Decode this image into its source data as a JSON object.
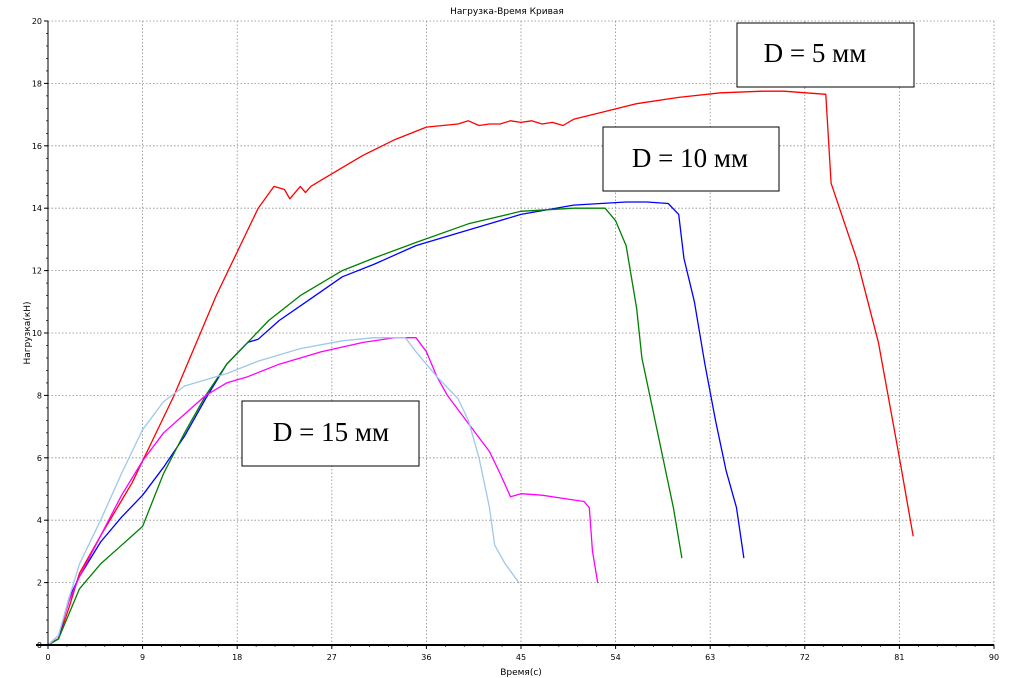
{
  "chart_data": {
    "type": "line",
    "title": "Нагрузка-Время Кривая",
    "xlabel": "Время(c)",
    "ylabel": "Нагрузка(кН)",
    "xlim": [
      0,
      90
    ],
    "ylim": [
      0,
      20
    ],
    "x_ticks": [
      "0",
      "9",
      "18",
      "27",
      "36",
      "45",
      "54",
      "63",
      "72",
      "81",
      "90"
    ],
    "y_ticks": [
      "0",
      "2",
      "4",
      "6",
      "8",
      "10",
      "12",
      "14",
      "16",
      "18",
      "20"
    ],
    "grid": true,
    "annotations": [
      {
        "text": "D = 5 мм",
        "series_color": "#ff0000"
      },
      {
        "text": "D = 10 мм",
        "series_color": "#008000"
      },
      {
        "text": "D = 15 мм",
        "series_color": "#ff00ff"
      }
    ],
    "series": [
      {
        "color": "#ff0000",
        "points": [
          [
            0,
            0
          ],
          [
            1,
            0.2
          ],
          [
            2,
            1.2
          ],
          [
            3,
            2.3
          ],
          [
            5,
            3.5
          ],
          [
            8,
            5.2
          ],
          [
            10,
            6.6
          ],
          [
            12,
            8.0
          ],
          [
            14,
            9.6
          ],
          [
            16,
            11.2
          ],
          [
            18,
            12.6
          ],
          [
            20,
            14.0
          ],
          [
            21.5,
            14.7
          ],
          [
            22.5,
            14.6
          ],
          [
            23,
            14.3
          ],
          [
            24,
            14.7
          ],
          [
            24.5,
            14.5
          ],
          [
            25,
            14.7
          ],
          [
            26,
            14.9
          ],
          [
            28,
            15.3
          ],
          [
            30,
            15.7
          ],
          [
            33,
            16.2
          ],
          [
            36,
            16.6
          ],
          [
            39,
            16.7
          ],
          [
            40,
            16.8
          ],
          [
            41,
            16.65
          ],
          [
            42,
            16.7
          ],
          [
            43,
            16.7
          ],
          [
            44,
            16.8
          ],
          [
            45,
            16.75
          ],
          [
            46,
            16.8
          ],
          [
            47,
            16.7
          ],
          [
            48,
            16.75
          ],
          [
            49,
            16.65
          ],
          [
            50,
            16.85
          ],
          [
            53,
            17.1
          ],
          [
            56,
            17.35
          ],
          [
            60,
            17.55
          ],
          [
            64,
            17.7
          ],
          [
            68,
            17.75
          ],
          [
            70,
            17.75
          ],
          [
            74,
            17.65
          ],
          [
            74.5,
            14.8
          ],
          [
            75.5,
            13.8
          ],
          [
            77,
            12.3
          ],
          [
            79,
            9.7
          ],
          [
            81,
            6.0
          ],
          [
            82.3,
            3.5
          ]
        ]
      },
      {
        "color": "#0000ff",
        "points": [
          [
            0,
            0
          ],
          [
            1,
            0.2
          ],
          [
            2,
            1.5
          ],
          [
            3,
            2.2
          ],
          [
            5,
            3.3
          ],
          [
            7,
            4.1
          ],
          [
            9,
            4.8
          ],
          [
            11,
            5.7
          ],
          [
            13,
            6.7
          ],
          [
            15,
            7.9
          ],
          [
            17,
            9.0
          ],
          [
            19,
            9.7
          ],
          [
            20,
            9.8
          ],
          [
            22,
            10.4
          ],
          [
            25,
            11.1
          ],
          [
            28,
            11.8
          ],
          [
            31,
            12.2
          ],
          [
            35,
            12.8
          ],
          [
            40,
            13.3
          ],
          [
            45,
            13.8
          ],
          [
            50,
            14.1
          ],
          [
            55,
            14.2
          ],
          [
            57,
            14.2
          ],
          [
            59,
            14.15
          ],
          [
            60,
            13.8
          ],
          [
            60.5,
            12.4
          ],
          [
            61.5,
            11.0
          ],
          [
            62.5,
            9.0
          ],
          [
            63.5,
            7.2
          ],
          [
            64.5,
            5.6
          ],
          [
            65.5,
            4.4
          ],
          [
            66.2,
            2.8
          ]
        ]
      },
      {
        "color": "#008000",
        "points": [
          [
            0,
            0
          ],
          [
            1,
            0.2
          ],
          [
            2,
            1.0
          ],
          [
            3,
            1.8
          ],
          [
            5,
            2.6
          ],
          [
            7,
            3.2
          ],
          [
            9,
            3.8
          ],
          [
            11,
            5.5
          ],
          [
            13,
            6.8
          ],
          [
            15,
            8.0
          ],
          [
            17,
            9.0
          ],
          [
            19,
            9.7
          ],
          [
            21,
            10.4
          ],
          [
            24,
            11.2
          ],
          [
            26,
            11.6
          ],
          [
            28,
            12.0
          ],
          [
            31,
            12.4
          ],
          [
            35,
            12.9
          ],
          [
            40,
            13.5
          ],
          [
            45,
            13.9
          ],
          [
            50,
            14.0
          ],
          [
            53,
            14.0
          ],
          [
            54,
            13.6
          ],
          [
            55,
            12.8
          ],
          [
            56,
            10.8
          ],
          [
            56.5,
            9.2
          ],
          [
            57.5,
            7.6
          ],
          [
            58.5,
            6.0
          ],
          [
            59.5,
            4.4
          ],
          [
            60.3,
            2.8
          ]
        ]
      },
      {
        "color": "#ff00ff",
        "points": [
          [
            0,
            0
          ],
          [
            1,
            0.3
          ],
          [
            2,
            1.4
          ],
          [
            3,
            2.2
          ],
          [
            5,
            3.5
          ],
          [
            7,
            4.8
          ],
          [
            9,
            5.9
          ],
          [
            11,
            6.8
          ],
          [
            13,
            7.4
          ],
          [
            15,
            8.0
          ],
          [
            17,
            8.4
          ],
          [
            19,
            8.6
          ],
          [
            22,
            9.0
          ],
          [
            26,
            9.4
          ],
          [
            30,
            9.7
          ],
          [
            33,
            9.85
          ],
          [
            35,
            9.85
          ],
          [
            36,
            9.4
          ],
          [
            37,
            8.6
          ],
          [
            38,
            8.0
          ],
          [
            40,
            7.1
          ],
          [
            42,
            6.2
          ],
          [
            43,
            5.5
          ],
          [
            44,
            4.75
          ],
          [
            45,
            4.85
          ],
          [
            47,
            4.8
          ],
          [
            49,
            4.7
          ],
          [
            51,
            4.6
          ],
          [
            51.5,
            4.4
          ],
          [
            51.8,
            3.0
          ],
          [
            52.3,
            2.0
          ]
        ]
      },
      {
        "color": "#9ec8ec",
        "points": [
          [
            0,
            0
          ],
          [
            1,
            0.3
          ],
          [
            2,
            1.5
          ],
          [
            3,
            2.6
          ],
          [
            5,
            4.0
          ],
          [
            7,
            5.5
          ],
          [
            9,
            6.9
          ],
          [
            11,
            7.8
          ],
          [
            13,
            8.3
          ],
          [
            15,
            8.5
          ],
          [
            17,
            8.7
          ],
          [
            20,
            9.1
          ],
          [
            24,
            9.5
          ],
          [
            28,
            9.75
          ],
          [
            31,
            9.85
          ],
          [
            34,
            9.85
          ],
          [
            35,
            9.4
          ],
          [
            37,
            8.6
          ],
          [
            39,
            7.9
          ],
          [
            40,
            7.2
          ],
          [
            41,
            6.0
          ],
          [
            42,
            4.4
          ],
          [
            42.5,
            3.2
          ],
          [
            43.5,
            2.6
          ],
          [
            44.8,
            2.0
          ]
        ]
      }
    ]
  }
}
